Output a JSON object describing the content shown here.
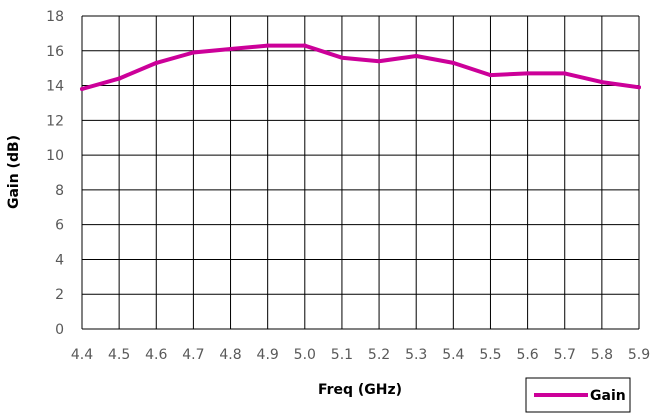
{
  "chart_data": {
    "type": "line",
    "title": "",
    "xlabel": "Freq (GHz)",
    "ylabel": "Gain  (dB)",
    "x": [
      "4.4",
      "4.5",
      "4.6",
      "4.7",
      "4.8",
      "4.9",
      "5.0",
      "5.1",
      "5.2",
      "5.3",
      "5.4",
      "5.5",
      "5.6",
      "5.7",
      "5.8",
      "5.9"
    ],
    "ylim": [
      0,
      18
    ],
    "yticks": [
      "0",
      "2",
      "4",
      "6",
      "8",
      "10",
      "12",
      "14",
      "16",
      "18"
    ],
    "grid": true,
    "legend_position": "bottom-right",
    "series": [
      {
        "name": "Gain",
        "color": "#cc0099",
        "values": [
          13.8,
          14.4,
          15.3,
          15.9,
          16.1,
          16.3,
          16.3,
          15.6,
          15.4,
          15.7,
          15.3,
          14.6,
          14.7,
          14.7,
          14.2,
          13.9
        ]
      }
    ]
  }
}
